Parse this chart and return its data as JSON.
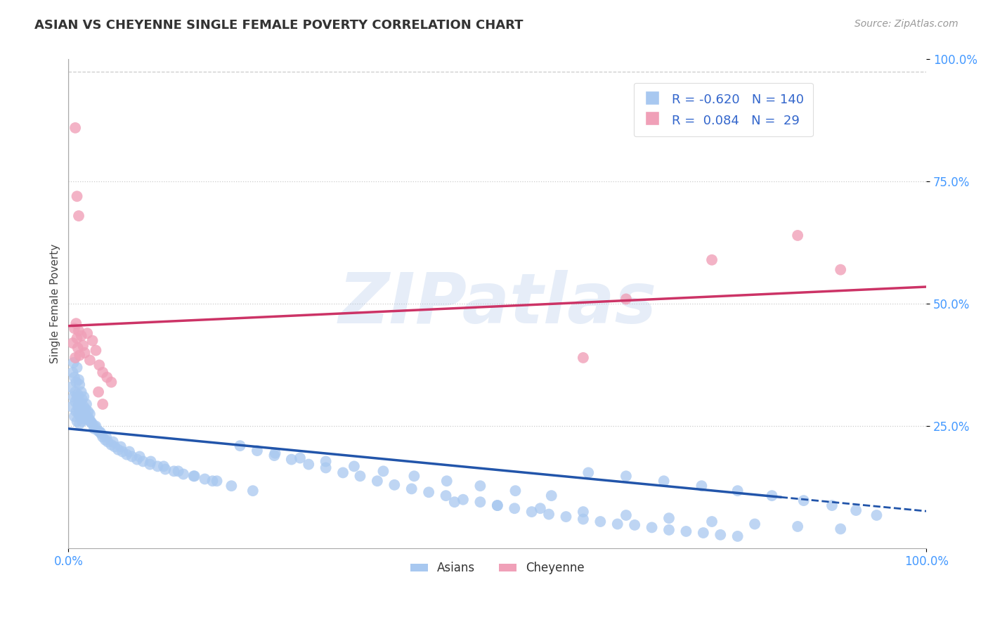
{
  "title": "ASIAN VS CHEYENNE SINGLE FEMALE POVERTY CORRELATION CHART",
  "source_text": "Source: ZipAtlas.com",
  "ylabel": "Single Female Poverty",
  "xlim": [
    0,
    1
  ],
  "ylim": [
    0,
    1
  ],
  "background_color": "#ffffff",
  "grid_color": "#cccccc",
  "watermark": "ZIPatlas",
  "watermark_color": "#aec6e8",
  "asian_color": "#a8c8f0",
  "cheyenne_color": "#f0a0b8",
  "asian_trend_color": "#2255aa",
  "cheyenne_trend_color": "#cc3366",
  "tick_color": "#4499ff",
  "title_color": "#333333",
  "source_color": "#999999",
  "legend_label_color": "#3366cc",
  "asian_label": "Asians",
  "cheyenne_label": "Cheyenne",
  "legend_r1": "R = -0.620",
  "legend_n1": "N = 140",
  "legend_r2": "R =  0.084",
  "legend_n2": "N =  29",
  "asian_trend_y0": 0.245,
  "asian_trend_y1": 0.105,
  "asian_trend_solid_x1": 0.83,
  "asian_trend_dashed_x1": 1.0,
  "cheyenne_trend_y0": 0.455,
  "cheyenne_trend_y1": 0.535,
  "asian_scatter_x": [
    0.003,
    0.004,
    0.005,
    0.006,
    0.006,
    0.007,
    0.007,
    0.008,
    0.008,
    0.009,
    0.009,
    0.01,
    0.01,
    0.011,
    0.011,
    0.012,
    0.012,
    0.013,
    0.013,
    0.014,
    0.014,
    0.015,
    0.015,
    0.016,
    0.016,
    0.017,
    0.018,
    0.018,
    0.019,
    0.02,
    0.021,
    0.022,
    0.023,
    0.024,
    0.025,
    0.026,
    0.028,
    0.03,
    0.032,
    0.035,
    0.038,
    0.04,
    0.043,
    0.046,
    0.05,
    0.054,
    0.058,
    0.063,
    0.068,
    0.074,
    0.08,
    0.087,
    0.095,
    0.104,
    0.113,
    0.123,
    0.134,
    0.146,
    0.159,
    0.173,
    0.01,
    0.012,
    0.015,
    0.018,
    0.022,
    0.026,
    0.031,
    0.037,
    0.044,
    0.052,
    0.061,
    0.071,
    0.083,
    0.096,
    0.111,
    0.128,
    0.147,
    0.168,
    0.19,
    0.215,
    0.241,
    0.27,
    0.3,
    0.333,
    0.367,
    0.403,
    0.441,
    0.48,
    0.521,
    0.563,
    0.606,
    0.65,
    0.694,
    0.738,
    0.78,
    0.82,
    0.857,
    0.89,
    0.918,
    0.942,
    0.2,
    0.22,
    0.24,
    0.26,
    0.28,
    0.3,
    0.32,
    0.34,
    0.36,
    0.38,
    0.4,
    0.42,
    0.44,
    0.46,
    0.48,
    0.5,
    0.52,
    0.54,
    0.56,
    0.58,
    0.6,
    0.62,
    0.64,
    0.66,
    0.68,
    0.7,
    0.72,
    0.74,
    0.76,
    0.78,
    0.45,
    0.5,
    0.55,
    0.6,
    0.65,
    0.7,
    0.75,
    0.8,
    0.85,
    0.9
  ],
  "asian_scatter_y": [
    0.33,
    0.29,
    0.36,
    0.31,
    0.38,
    0.27,
    0.35,
    0.3,
    0.32,
    0.28,
    0.34,
    0.26,
    0.37,
    0.29,
    0.315,
    0.275,
    0.345,
    0.255,
    0.335,
    0.27,
    0.3,
    0.28,
    0.32,
    0.26,
    0.305,
    0.275,
    0.29,
    0.31,
    0.265,
    0.285,
    0.295,
    0.27,
    0.28,
    0.265,
    0.275,
    0.26,
    0.255,
    0.245,
    0.25,
    0.24,
    0.235,
    0.228,
    0.222,
    0.218,
    0.212,
    0.208,
    0.202,
    0.198,
    0.192,
    0.188,
    0.182,
    0.178,
    0.172,
    0.168,
    0.162,
    0.158,
    0.152,
    0.148,
    0.142,
    0.138,
    0.31,
    0.295,
    0.285,
    0.275,
    0.265,
    0.258,
    0.248,
    0.238,
    0.228,
    0.218,
    0.208,
    0.198,
    0.188,
    0.178,
    0.168,
    0.158,
    0.148,
    0.138,
    0.128,
    0.118,
    0.195,
    0.185,
    0.178,
    0.168,
    0.158,
    0.148,
    0.138,
    0.128,
    0.118,
    0.108,
    0.155,
    0.148,
    0.138,
    0.128,
    0.118,
    0.108,
    0.098,
    0.088,
    0.078,
    0.068,
    0.21,
    0.2,
    0.19,
    0.182,
    0.172,
    0.165,
    0.155,
    0.148,
    0.138,
    0.13,
    0.122,
    0.115,
    0.108,
    0.1,
    0.095,
    0.088,
    0.082,
    0.075,
    0.07,
    0.065,
    0.06,
    0.055,
    0.05,
    0.048,
    0.043,
    0.038,
    0.035,
    0.032,
    0.028,
    0.025,
    0.095,
    0.088,
    0.082,
    0.075,
    0.068,
    0.062,
    0.055,
    0.05,
    0.045,
    0.04
  ],
  "cheyenne_scatter_x": [
    0.005,
    0.007,
    0.008,
    0.009,
    0.01,
    0.011,
    0.012,
    0.013,
    0.015,
    0.017,
    0.019,
    0.022,
    0.025,
    0.028,
    0.032,
    0.036,
    0.04,
    0.045,
    0.05,
    0.008,
    0.01,
    0.012,
    0.035,
    0.04,
    0.6,
    0.65,
    0.75,
    0.85,
    0.9
  ],
  "cheyenne_scatter_y": [
    0.42,
    0.45,
    0.39,
    0.46,
    0.43,
    0.41,
    0.445,
    0.395,
    0.435,
    0.415,
    0.4,
    0.44,
    0.385,
    0.425,
    0.405,
    0.375,
    0.36,
    0.35,
    0.34,
    0.86,
    0.72,
    0.68,
    0.32,
    0.295,
    0.39,
    0.51,
    0.59,
    0.64,
    0.57
  ]
}
